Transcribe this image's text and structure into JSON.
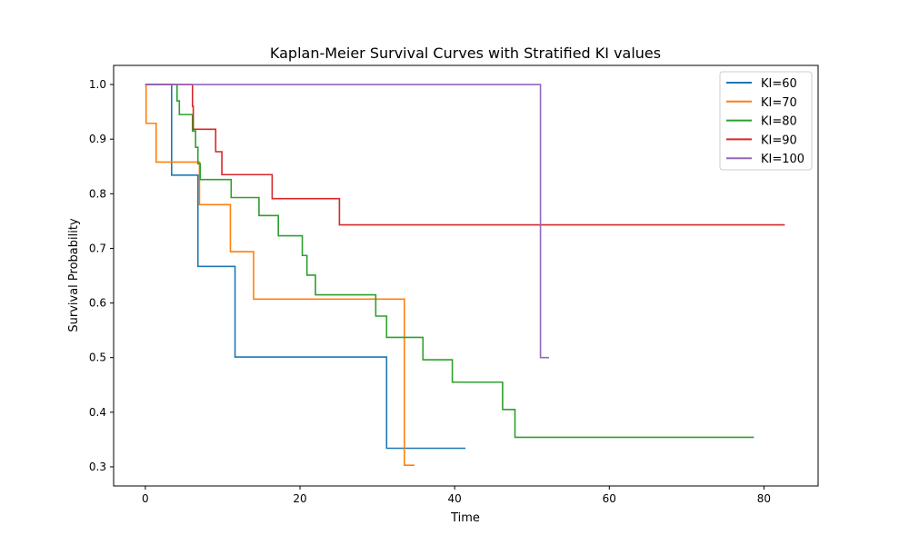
{
  "chart_data": {
    "type": "line",
    "step": true,
    "title": "Kaplan-Meier Survival Curves with Stratified KI values",
    "xlabel": "Time",
    "ylabel": "Survival Probability",
    "xlim": [
      -4.1,
      87.0
    ],
    "ylim": [
      0.265,
      1.035
    ],
    "xticks": [
      0,
      20,
      40,
      60,
      80
    ],
    "yticks": [
      0.3,
      0.4,
      0.5,
      0.6,
      0.7,
      0.8,
      0.9,
      1.0
    ],
    "xtick_labels": [
      "0",
      "20",
      "40",
      "60",
      "80"
    ],
    "ytick_labels": [
      "0.3",
      "0.4",
      "0.5",
      "0.6",
      "0.7",
      "0.8",
      "0.9",
      "1.0"
    ],
    "grid": false,
    "legend_position": "top-right",
    "series": [
      {
        "name": "KI=60",
        "color": "#1f77b4",
        "x": [
          0,
          3.4,
          6.8,
          11.6,
          31.2,
          41.4
        ],
        "y": [
          1.0,
          0.834,
          0.667,
          0.501,
          0.334,
          0.334
        ]
      },
      {
        "name": "KI=70",
        "color": "#ff7f0e",
        "x": [
          0,
          0.1,
          1.4,
          7.0,
          11.0,
          14.0,
          33.5,
          34.8
        ],
        "y": [
          1.0,
          0.929,
          0.858,
          0.78,
          0.694,
          0.607,
          0.303,
          0.303
        ]
      },
      {
        "name": "KI=80",
        "color": "#2ca02c",
        "x": [
          0,
          4.1,
          4.4,
          5.1,
          6.1,
          6.5,
          6.8,
          7.1,
          11.1,
          14.7,
          17.2,
          20.3,
          20.9,
          22.0,
          29.8,
          31.2,
          35.9,
          39.7,
          46.2,
          47.8,
          78.7
        ],
        "y": [
          1.0,
          0.97,
          0.945,
          0.945,
          0.915,
          0.885,
          0.855,
          0.826,
          0.793,
          0.76,
          0.723,
          0.687,
          0.651,
          0.615,
          0.576,
          0.537,
          0.496,
          0.455,
          0.405,
          0.354,
          0.354
        ]
      },
      {
        "name": "KI=90",
        "color": "#d62728",
        "x": [
          0,
          6.1,
          6.2,
          9.1,
          9.9,
          16.4,
          25.1,
          82.7
        ],
        "y": [
          1.0,
          0.96,
          0.918,
          0.877,
          0.835,
          0.791,
          0.743,
          0.743
        ]
      },
      {
        "name": "KI=100",
        "color": "#9467bd",
        "x": [
          0,
          51.1,
          52.2
        ],
        "y": [
          1.0,
          0.5,
          0.5
        ]
      }
    ]
  }
}
